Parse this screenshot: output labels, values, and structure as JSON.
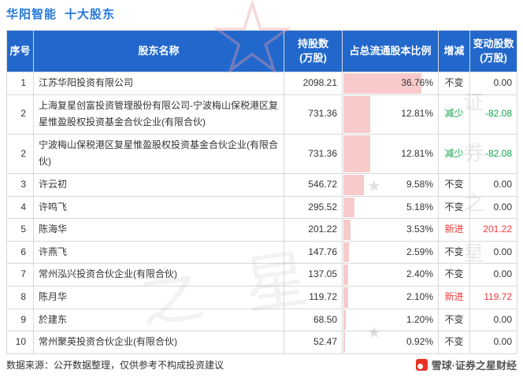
{
  "title": {
    "stock": "华阳智能",
    "suffix": "十大股东"
  },
  "watermark": {
    "text": "证券之星",
    "text_short": "之星",
    "star_outline": "☆",
    "star_small": "★"
  },
  "colors": {
    "header_bg": "#2268cc",
    "header_text": "#ffffff",
    "title_blue": "#2479d8",
    "bar_pink": "#f8caca",
    "neutral": "#333333",
    "decrease": "#11a54c",
    "increase": "#f83a3a",
    "brand_red": "#e83224"
  },
  "table": {
    "headers": [
      "序号",
      "股东名称",
      "持股数\n(万股)",
      "占总流通股本比例",
      "增减",
      "变动股数\n(万股)"
    ]
  },
  "rows": [
    {
      "no": "1",
      "name": "江苏华阳投资有限公司",
      "shares": "2098.21",
      "pct": "36.76%",
      "pct_value": 36.76,
      "change": "不变",
      "status": "neutral",
      "delta": "0.00"
    },
    {
      "no": "2",
      "name": "上海复星创富投资管理股份有限公司-宁波梅山保税港区复星惟盈股权投资基金合伙企业(有限合伙)",
      "shares": "731.36",
      "pct": "12.81%",
      "pct_value": 12.81,
      "change": "减少",
      "status": "decrease",
      "delta": "-82.08"
    },
    {
      "no": "2",
      "name": "宁波梅山保税港区复星惟盈股权投资基金合伙企业(有限合伙)",
      "shares": "731.36",
      "pct": "12.81%",
      "pct_value": 12.81,
      "change": "减少",
      "status": "decrease",
      "delta": "-82.08"
    },
    {
      "no": "3",
      "name": "许云初",
      "shares": "546.72",
      "pct": "9.58%",
      "pct_value": 9.58,
      "change": "不变",
      "status": "neutral",
      "delta": "0.00"
    },
    {
      "no": "4",
      "name": "许鸣飞",
      "shares": "295.52",
      "pct": "5.18%",
      "pct_value": 5.18,
      "change": "不变",
      "status": "neutral",
      "delta": "0.00"
    },
    {
      "no": "5",
      "name": "陈海华",
      "shares": "201.22",
      "pct": "3.53%",
      "pct_value": 3.53,
      "change": "新进",
      "status": "increase",
      "delta": "201.22"
    },
    {
      "no": "6",
      "name": "许燕飞",
      "shares": "147.76",
      "pct": "2.59%",
      "pct_value": 2.59,
      "change": "不变",
      "status": "neutral",
      "delta": "0.00"
    },
    {
      "no": "7",
      "name": "常州泓兴投资合伙企业(有限合伙)",
      "shares": "137.05",
      "pct": "2.40%",
      "pct_value": 2.4,
      "change": "不变",
      "status": "neutral",
      "delta": "0.00"
    },
    {
      "no": "8",
      "name": "陈月华",
      "shares": "119.72",
      "pct": "2.10%",
      "pct_value": 2.1,
      "change": "新进",
      "status": "increase",
      "delta": "119.72"
    },
    {
      "no": "9",
      "name": "於建东",
      "shares": "68.50",
      "pct": "1.20%",
      "pct_value": 1.2,
      "change": "不变",
      "status": "neutral",
      "delta": "0.00"
    },
    {
      "no": "10",
      "name": "常州聚英投资合伙企业(有限合伙)",
      "shares": "52.47",
      "pct": "0.92%",
      "pct_value": 0.92,
      "change": "不变",
      "status": "neutral",
      "delta": "0.00"
    }
  ],
  "chart": {
    "bar_scale_max": 45
  },
  "footer": {
    "source": "数据来源：公开数据整理，仅供参考不构成投资建议",
    "brand": "雪球·证券之星财经"
  },
  "chart_data": {
    "type": "table",
    "title": "华阳智能 十大股东",
    "columns": [
      "序号",
      "股东名称",
      "持股数(万股)",
      "占总流通股本比例",
      "增减",
      "变动股数(万股)"
    ],
    "rows": [
      [
        "1",
        "江苏华阳投资有限公司",
        2098.21,
        "36.76%",
        "不变",
        0.0
      ],
      [
        "2",
        "上海复星创富投资管理股份有限公司-宁波梅山保税港区复星惟盈股权投资基金合伙企业(有限合伙)",
        731.36,
        "12.81%",
        "减少",
        -82.08
      ],
      [
        "2",
        "宁波梅山保税港区复星惟盈股权投资基金合伙企业(有限合伙)",
        731.36,
        "12.81%",
        "减少",
        -82.08
      ],
      [
        "3",
        "许云初",
        546.72,
        "9.58%",
        "不变",
        0.0
      ],
      [
        "4",
        "许鸣飞",
        295.52,
        "5.18%",
        "不变",
        0.0
      ],
      [
        "5",
        "陈海华",
        201.22,
        "3.53%",
        "新进",
        201.22
      ],
      [
        "6",
        "许燕飞",
        147.76,
        "2.59%",
        "不变",
        0.0
      ],
      [
        "7",
        "常州泓兴投资合伙企业(有限合伙)",
        137.05,
        "2.40%",
        "不变",
        0.0
      ],
      [
        "8",
        "陈月华",
        119.72,
        "2.10%",
        "新进",
        119.72
      ],
      [
        "9",
        "於建东",
        68.5,
        "1.20%",
        "不变",
        0.0
      ],
      [
        "10",
        "常州聚英投资合伙企业(有限合伙)",
        52.47,
        "0.92%",
        "不变",
        0.0
      ]
    ],
    "bar_overlay": {
      "column": "占总流通股本比例",
      "values": [
        36.76,
        12.81,
        12.81,
        9.58,
        5.18,
        3.53,
        2.59,
        2.4,
        2.1,
        1.2,
        0.92
      ],
      "color": "#f8caca",
      "anchored": "left"
    },
    "legend": "none",
    "notes": "increase=red(新进), decrease=green(减少), neutral=black(不变)"
  }
}
